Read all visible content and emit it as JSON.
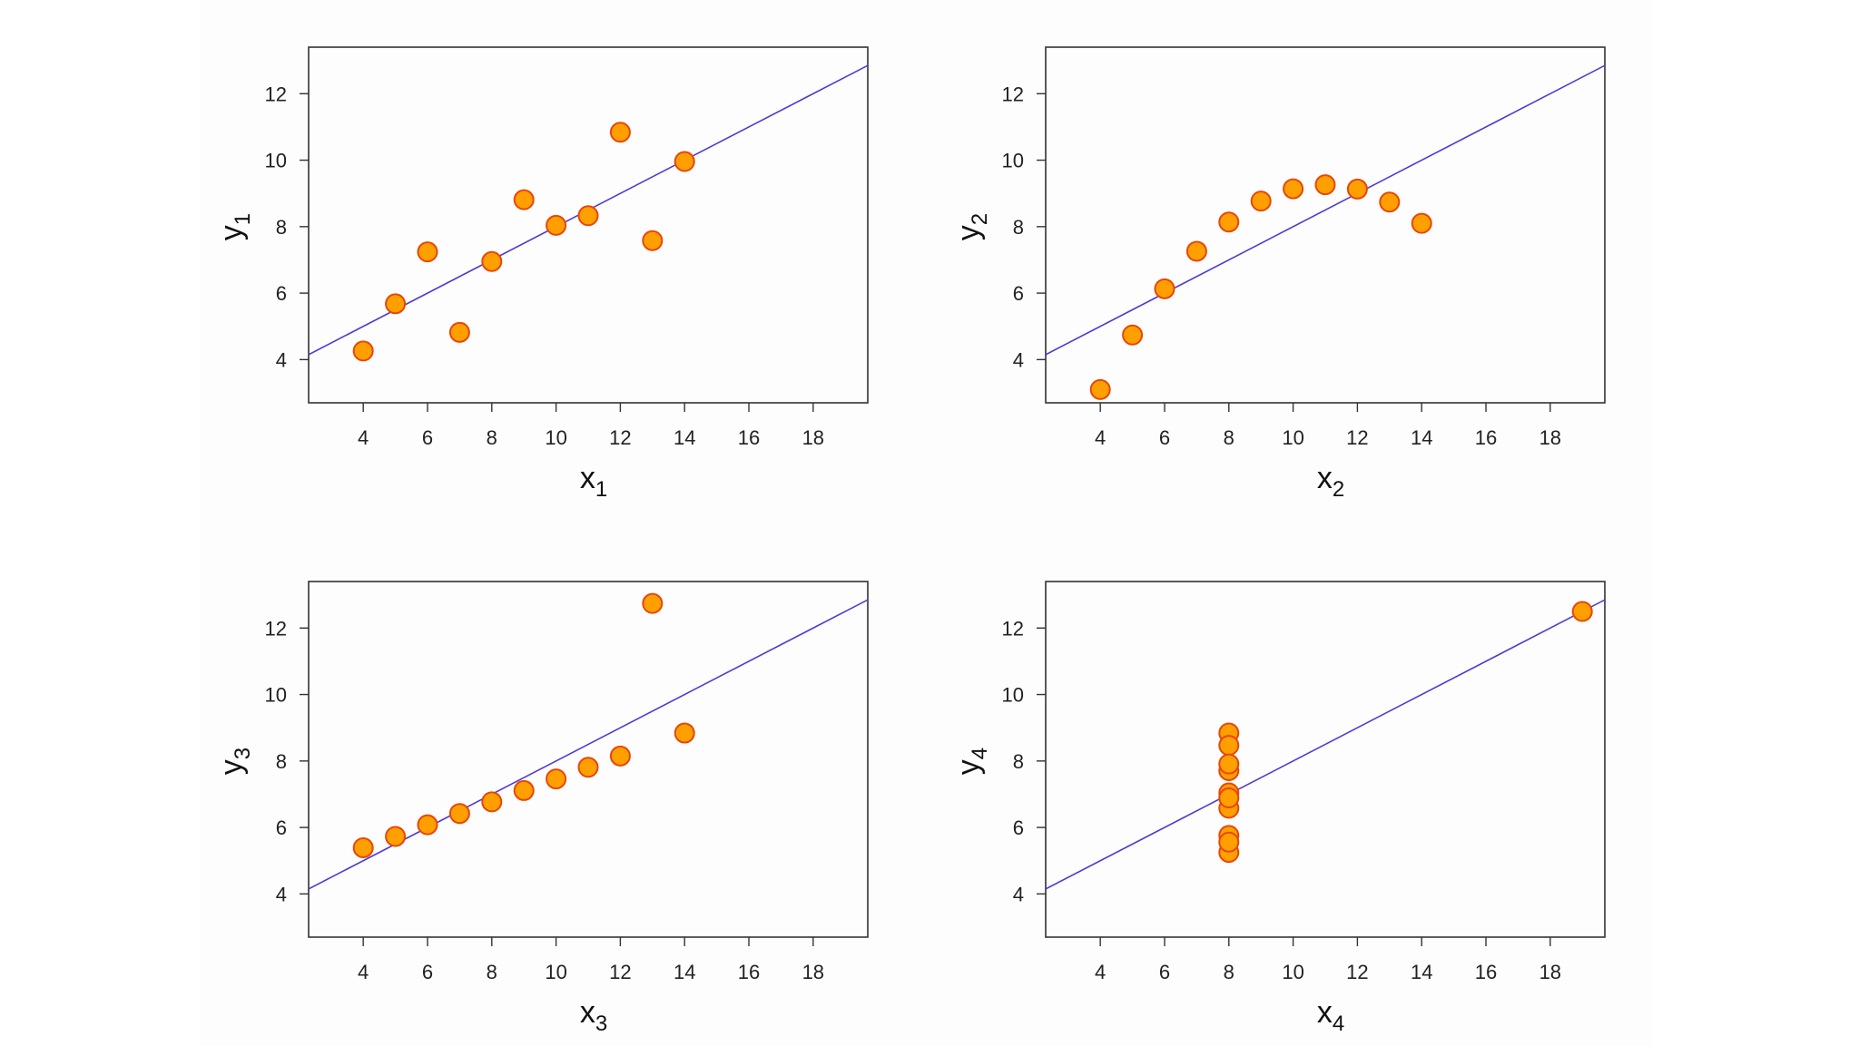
{
  "colors": {
    "point_fill": "#ff9f00",
    "point_stroke": "#e8460a",
    "regression_line": "#4b3bd6",
    "frame": "#333333",
    "tick_text": "#222222"
  },
  "chart_data": [
    {
      "type": "scatter",
      "name": "panel-1",
      "xlabel": "x",
      "xlabel_sub": "1",
      "ylabel": "y",
      "ylabel_sub": "1",
      "xlim": [
        2.3,
        19.7
      ],
      "ylim": [
        2.7,
        13.4
      ],
      "xticks": [
        4,
        6,
        8,
        10,
        12,
        14,
        16,
        18
      ],
      "yticks": [
        4,
        6,
        8,
        10,
        12
      ],
      "regression": {
        "intercept": 3.0,
        "slope": 0.5
      },
      "x": [
        10,
        8,
        13,
        9,
        11,
        14,
        6,
        4,
        12,
        7,
        5
      ],
      "y": [
        8.04,
        6.95,
        7.58,
        8.81,
        8.33,
        9.96,
        7.24,
        4.26,
        10.84,
        4.82,
        5.68
      ]
    },
    {
      "type": "scatter",
      "name": "panel-2",
      "xlabel": "x",
      "xlabel_sub": "2",
      "ylabel": "y",
      "ylabel_sub": "2",
      "xlim": [
        2.3,
        19.7
      ],
      "ylim": [
        2.7,
        13.4
      ],
      "xticks": [
        4,
        6,
        8,
        10,
        12,
        14,
        16,
        18
      ],
      "yticks": [
        4,
        6,
        8,
        10,
        12
      ],
      "regression": {
        "intercept": 3.0,
        "slope": 0.5
      },
      "x": [
        10,
        8,
        13,
        9,
        11,
        14,
        6,
        4,
        12,
        7,
        5
      ],
      "y": [
        9.14,
        8.14,
        8.74,
        8.77,
        9.26,
        8.1,
        6.13,
        3.1,
        9.13,
        7.26,
        4.74
      ]
    },
    {
      "type": "scatter",
      "name": "panel-3",
      "xlabel": "x",
      "xlabel_sub": "3",
      "ylabel": "y",
      "ylabel_sub": "3",
      "xlim": [
        2.3,
        19.7
      ],
      "ylim": [
        2.7,
        13.4
      ],
      "xticks": [
        4,
        6,
        8,
        10,
        12,
        14,
        16,
        18
      ],
      "yticks": [
        4,
        6,
        8,
        10,
        12
      ],
      "regression": {
        "intercept": 3.0,
        "slope": 0.5
      },
      "x": [
        10,
        8,
        13,
        9,
        11,
        14,
        6,
        4,
        12,
        7,
        5
      ],
      "y": [
        7.46,
        6.77,
        12.74,
        7.11,
        7.81,
        8.84,
        6.08,
        5.39,
        8.15,
        6.42,
        5.73
      ]
    },
    {
      "type": "scatter",
      "name": "panel-4",
      "xlabel": "x",
      "xlabel_sub": "4",
      "ylabel": "y",
      "ylabel_sub": "4",
      "xlim": [
        2.3,
        19.7
      ],
      "ylim": [
        2.7,
        13.4
      ],
      "xticks": [
        4,
        6,
        8,
        10,
        12,
        14,
        16,
        18
      ],
      "yticks": [
        4,
        6,
        8,
        10,
        12
      ],
      "regression": {
        "intercept": 3.0,
        "slope": 0.5
      },
      "x": [
        8,
        8,
        8,
        8,
        8,
        8,
        8,
        19,
        8,
        8,
        8
      ],
      "y": [
        6.58,
        5.76,
        7.71,
        8.84,
        8.47,
        7.04,
        5.25,
        12.5,
        5.56,
        7.91,
        6.89
      ]
    }
  ]
}
